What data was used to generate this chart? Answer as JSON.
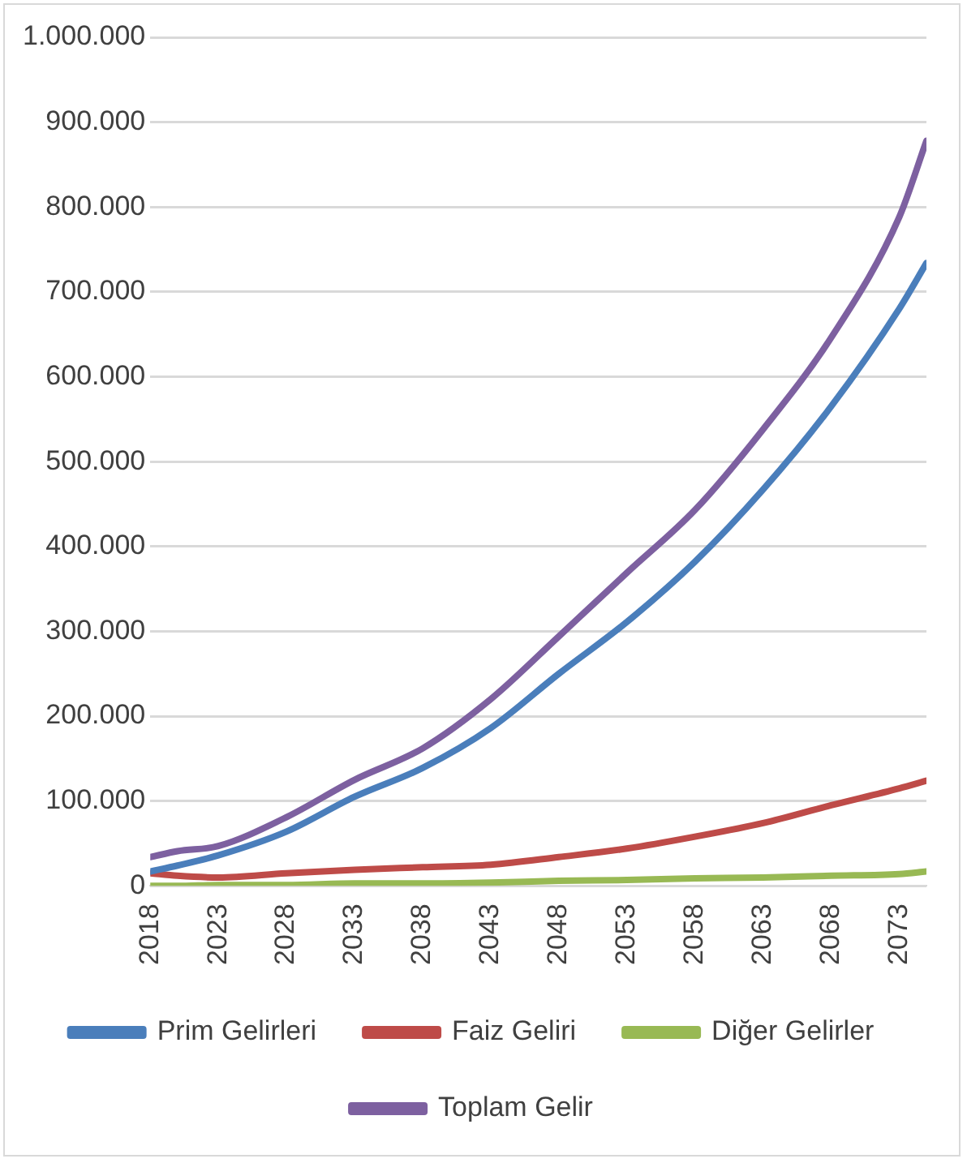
{
  "chart_data": {
    "type": "line",
    "x": [
      2018,
      2020,
      2023,
      2028,
      2033,
      2038,
      2043,
      2048,
      2053,
      2058,
      2063,
      2068,
      2073,
      2075
    ],
    "xlim": [
      2018,
      2075
    ],
    "xticks": [
      2018,
      2023,
      2028,
      2033,
      2038,
      2043,
      2048,
      2053,
      2058,
      2063,
      2068,
      2073
    ],
    "ylim": [
      0,
      1000000
    ],
    "yticks": [
      0,
      {
        "value": 100000,
        "label": "100.000"
      },
      {
        "value": 200000,
        "label": "200.000"
      },
      {
        "value": 300000,
        "label": "300.000"
      },
      {
        "value": 400000,
        "label": "400.000"
      },
      {
        "value": 500000,
        "label": "500.000"
      },
      {
        "value": 600000,
        "label": "600.000"
      },
      {
        "value": 700000,
        "label": "700.000"
      },
      {
        "value": 800000,
        "label": "800.000"
      },
      {
        "value": 900000,
        "label": "900.000"
      },
      {
        "value": 1000000,
        "label": "1.000.000"
      }
    ],
    "series": [
      {
        "name": "Prim Gelirleri",
        "color": "#4a7ebb",
        "values": [
          17000,
          24000,
          36000,
          64000,
          105000,
          139000,
          186000,
          250000,
          311000,
          382000,
          467000,
          565000,
          680000,
          734000
        ]
      },
      {
        "name": "Faiz Geliri",
        "color": "#be4b48",
        "values": [
          15000,
          12000,
          10000,
          15000,
          19000,
          22000,
          25000,
          34000,
          44000,
          58000,
          74000,
          95000,
          115000,
          124000
        ]
      },
      {
        "name": "Diğer Gelirler",
        "color": "#98b954",
        "values": [
          0,
          0,
          1000,
          1000,
          3000,
          3000,
          4000,
          6000,
          7000,
          9000,
          10000,
          12000,
          14000,
          17000
        ]
      },
      {
        "name": "Toplam Gelir",
        "color": "#7d60a0",
        "values": [
          34000,
          41000,
          47000,
          81000,
          125000,
          162000,
          220000,
          294000,
          369000,
          443000,
          538000,
          646000,
          788000,
          878000
        ]
      }
    ],
    "grid": "y",
    "legend": "bottom",
    "marker": "none",
    "line_style": "solid"
  }
}
